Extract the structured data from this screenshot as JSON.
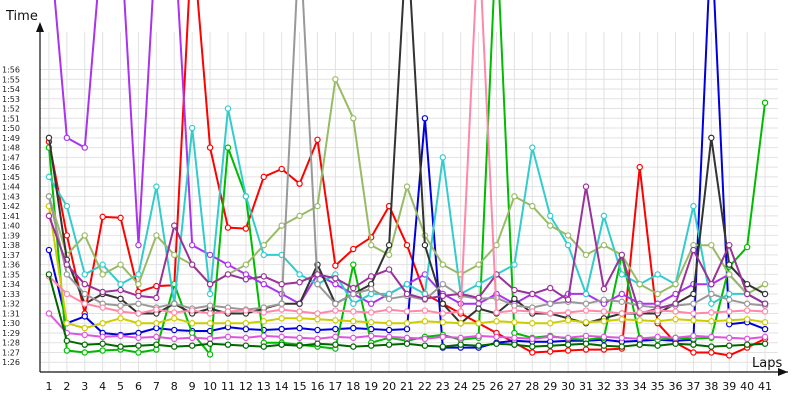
{
  "chart_data": {
    "type": "line",
    "ylabel": "Time",
    "xlabel": "Laps",
    "grid": true,
    "x_ticks": [
      1,
      2,
      3,
      4,
      5,
      6,
      7,
      8,
      9,
      10,
      11,
      12,
      13,
      14,
      15,
      16,
      17,
      18,
      19,
      20,
      21,
      22,
      23,
      24,
      25,
      26,
      27,
      28,
      29,
      30,
      31,
      32,
      33,
      34,
      35,
      36,
      37,
      38,
      39,
      40,
      41
    ],
    "y_ticks": [
      "1:26",
      "1:27",
      "1:28",
      "1:29",
      "1:30",
      "1:31",
      "1:32",
      "1:33",
      "1:34",
      "1:35",
      "1:36",
      "1:37",
      "1:38",
      "1:39",
      "1:40",
      "1:41",
      "1:42",
      "1:43",
      "1:44",
      "1:45",
      "1:46",
      "1:47",
      "1:48",
      "1:49",
      "1:50",
      "1:51",
      "1:52",
      "1:53",
      "1:54",
      "1:55",
      "1:56"
    ],
    "ylim_seconds": [
      85,
      118
    ],
    "xlim": [
      0.5,
      41.5
    ],
    "series": [
      {
        "color": "#ff0000",
        "values": [
          108.6,
          99,
          91,
          100.9,
          100.8,
          93.2,
          93.8,
          93.9,
          130,
          108,
          99.8,
          99.7,
          105,
          105.8,
          104.3,
          108.8,
          95.9,
          97.6,
          98.8,
          102,
          98,
          93,
          92,
          91,
          90,
          89,
          88,
          87,
          87.1,
          87.2,
          87.3,
          87.3,
          87.4,
          106,
          90,
          88,
          87,
          87,
          86.7,
          87.5,
          88.4
        ]
      },
      {
        "color": "#0000dd",
        "values": [
          97.5,
          90,
          90.7,
          89,
          88.8,
          89,
          89.5,
          89.3,
          89.2,
          89.2,
          89.6,
          89.4,
          89.3,
          89.4,
          89.5,
          89.3,
          89.4,
          89.5,
          89.4,
          89.3,
          89.4,
          111,
          87.5,
          87.5,
          87.5,
          88,
          88.2,
          88.1,
          88.1,
          88.2,
          88.2,
          88.3,
          88.1,
          88.2,
          88.3,
          88.2,
          88.3,
          130,
          89.9,
          90.1,
          89.4
        ]
      },
      {
        "color": "#00bb00",
        "values": [
          108,
          87.2,
          87.0,
          87.2,
          87.3,
          87.0,
          87.3,
          94,
          89,
          86.8,
          108,
          103,
          88,
          88,
          87.8,
          87.6,
          87.4,
          96,
          88,
          88.5,
          88.2,
          88.6,
          88.8,
          88.3,
          88.5,
          130,
          89,
          88.5,
          88.7,
          88.4,
          88.3,
          88.5,
          97,
          88.5,
          88.3,
          88.5,
          88.4,
          88.5,
          95.8,
          97.8,
          112.6
        ]
      },
      {
        "color": "#aa33ee",
        "values": [
          130,
          109,
          108,
          130,
          130,
          98,
          130,
          130,
          98,
          97,
          96,
          95,
          94,
          93,
          92,
          95,
          94,
          93,
          92,
          93,
          94,
          95,
          93,
          92,
          92,
          93,
          92,
          93,
          92,
          93,
          93,
          92,
          93,
          92,
          92,
          93,
          94,
          94,
          95,
          93,
          92
        ]
      },
      {
        "color": "#33cccc",
        "values": [
          105,
          102,
          95,
          96,
          94,
          95,
          104,
          92,
          110,
          93,
          112,
          103,
          97,
          97,
          95,
          94,
          95,
          92,
          93,
          93,
          94,
          93,
          107,
          93,
          94,
          95,
          96,
          108,
          101,
          98,
          93,
          101,
          95,
          94,
          95,
          94,
          102,
          92,
          93,
          93,
          92
        ]
      },
      {
        "color": "#99bb66",
        "values": [
          103,
          97,
          99,
          95,
          96,
          94,
          99,
          97,
          96,
          94,
          95,
          96,
          98,
          100,
          101,
          102,
          115,
          111,
          98,
          97,
          104,
          99,
          96,
          95,
          96,
          98,
          103,
          102,
          100,
          99,
          97,
          98,
          97,
          94,
          93,
          94,
          98,
          98,
          95,
          93,
          94
        ]
      },
      {
        "color": "#333333",
        "values": [
          109,
          96.5,
          92,
          93,
          92.5,
          91,
          91,
          92,
          91,
          91.5,
          91,
          91,
          91.5,
          92,
          92,
          96,
          92,
          93,
          94,
          98,
          130,
          98,
          92,
          90,
          91.5,
          91,
          92.5,
          91,
          91,
          90.5,
          90,
          90.5,
          91,
          91,
          91,
          92,
          93,
          109,
          96,
          94,
          93
        ]
      },
      {
        "color": "#cccc00",
        "values": [
          102,
          90,
          89.5,
          90,
          90.5,
          90,
          90,
          90.5,
          90,
          90,
          90,
          90,
          90.2,
          90.5,
          90.5,
          90.4,
          90.3,
          90.2,
          90.1,
          90,
          90,
          90.2,
          90.1,
          90,
          90,
          90.2,
          90.1,
          90,
          90,
          90.3,
          90.1,
          90.2,
          90.4,
          90.3,
          90.2,
          90.4,
          90.3,
          90.2,
          90.3,
          90.4,
          90.1
        ]
      },
      {
        "color": "#999999",
        "values": [
          103,
          95,
          93,
          92,
          91.8,
          92,
          91.6,
          92,
          91.5,
          91.8,
          91.6,
          91.4,
          91.6,
          92,
          130,
          94,
          92,
          93,
          93.5,
          92.5,
          92.8,
          92.4,
          94,
          92.8,
          92.5,
          92.6,
          91.8,
          91.6,
          92,
          92.2,
          92,
          92.4,
          92.2,
          91.8,
          91.6,
          91.8,
          92,
          93,
          92.4,
          92,
          91.8
        ]
      },
      {
        "color": "#993399",
        "values": [
          101,
          96,
          94,
          93.2,
          93.4,
          92.8,
          92.6,
          100,
          96,
          94,
          95,
          94.5,
          94.8,
          94,
          94.2,
          95,
          94.6,
          93.6,
          94.8,
          95.5,
          93,
          92.5,
          92.8,
          93,
          92.6,
          95,
          93.4,
          93,
          93.6,
          92.4,
          104,
          93.5,
          97,
          91,
          91.5,
          92,
          97.5,
          94,
          98,
          93,
          92
        ]
      },
      {
        "color": "#ff88aa",
        "values": [
          94.8,
          93,
          92,
          91.6,
          91.2,
          91,
          91.4,
          91.1,
          91.3,
          91.0,
          91.2,
          91.3,
          91.1,
          91.4,
          91.2,
          91.0,
          91.3,
          91.2,
          91.1,
          91.4,
          91.2,
          91.3,
          91.0,
          91.2,
          130,
          91.1,
          91.3,
          91.2,
          91.0,
          91.1,
          91.3,
          91.2,
          91.0,
          91.1,
          91.3,
          91.2,
          91.0,
          91.1,
          91.2,
          91.3,
          91.2
        ]
      },
      {
        "color": "#dd55dd",
        "values": [
          91,
          89,
          88.8,
          88.6,
          88.7,
          88.5,
          88.6,
          88.4,
          88.5,
          88.4,
          88.6,
          88.5,
          88.7,
          88.6,
          88.5,
          88.4,
          88.6,
          88.5,
          88.7,
          88.6,
          88.5,
          88.4,
          88.6,
          88.5,
          88.7,
          88.6,
          88.5,
          88.4,
          88.6,
          88.5,
          88.7,
          88.6,
          88.5,
          88.4,
          88.6,
          88.5,
          88.7,
          88.6,
          88.5,
          88.4,
          88.6
        ]
      },
      {
        "color": "#006600",
        "values": [
          95,
          88.2,
          87.8,
          87.9,
          87.6,
          87.7,
          87.8,
          87.6,
          87.7,
          87.9,
          87.8,
          87.7,
          87.6,
          87.8,
          87.7,
          87.9,
          87.8,
          87.6,
          87.7,
          87.8,
          87.9,
          87.7,
          87.6,
          87.8,
          87.7,
          87.9,
          87.8,
          87.6,
          87.7,
          87.8,
          87.9,
          87.7,
          87.6,
          87.8,
          87.7,
          87.9,
          87.8,
          87.6,
          87.7,
          87.8,
          87.9
        ]
      }
    ]
  }
}
